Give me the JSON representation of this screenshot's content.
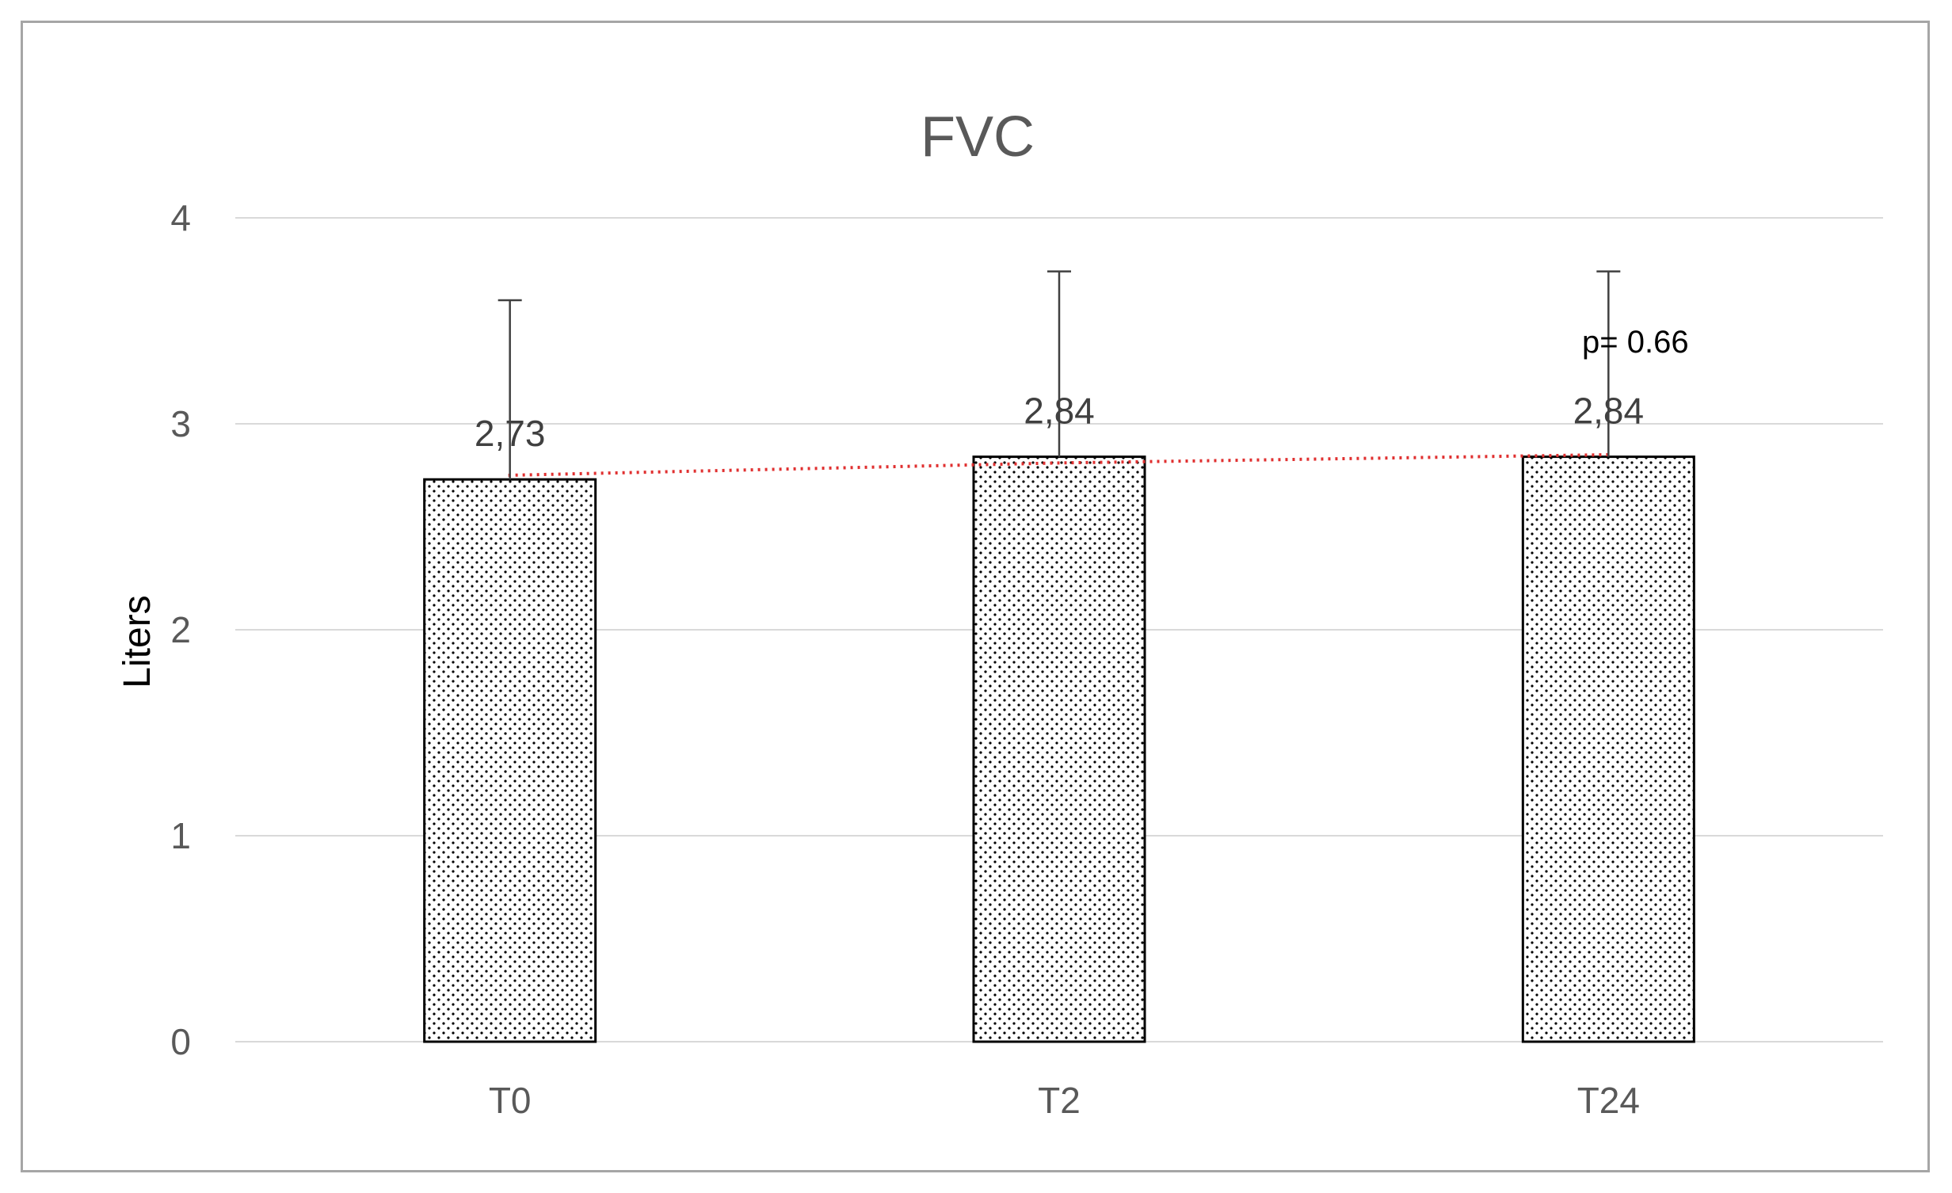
{
  "chart_data": {
    "type": "bar",
    "title": "FVC",
    "xlabel": "",
    "ylabel": "Liters",
    "categories": [
      "T0",
      "T2",
      "T24"
    ],
    "values": [
      2.73,
      2.84,
      2.84
    ],
    "data_labels": [
      "2,73",
      "2,84",
      "2,84"
    ],
    "error_upper": [
      3.6,
      3.74,
      3.74
    ],
    "ylim": [
      0,
      4
    ],
    "yticks": [
      0,
      1,
      2,
      3,
      4
    ],
    "ytick_labels": [
      "0",
      "1",
      "2",
      "3",
      "4"
    ],
    "grid": true,
    "bar_fill": "dotted pattern",
    "trendline": {
      "style": "dotted",
      "color": "#e03030",
      "values": [
        2.75,
        2.81,
        2.85
      ]
    },
    "annotations": [
      {
        "text": "p= 0.66",
        "category": "T24"
      }
    ],
    "colors": {
      "bar_dots": "#000000",
      "bar_border": "#000000",
      "grid": "#d9d9d9",
      "error_bar": "#404040",
      "trend": "#e03030"
    }
  }
}
